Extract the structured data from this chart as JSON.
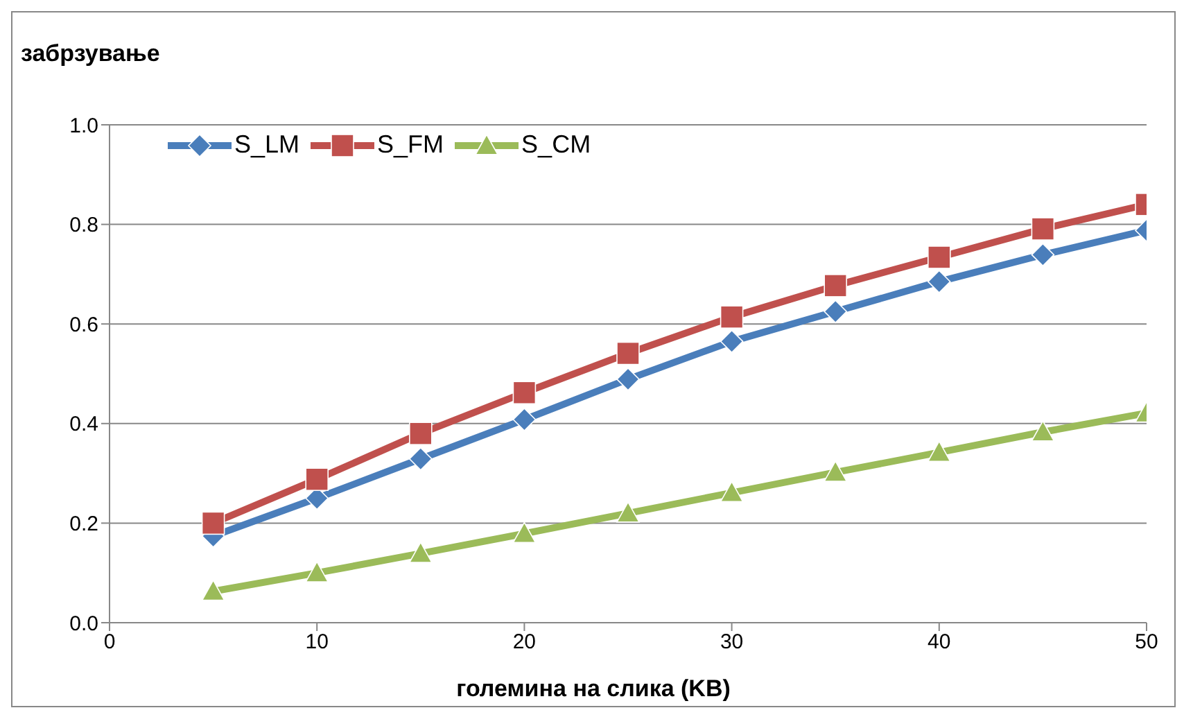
{
  "chart_data": {
    "type": "line",
    "ylabel": "забрзување",
    "xlabel": "големина на слика (KB)",
    "x": [
      5,
      10,
      15,
      20,
      25,
      30,
      35,
      40,
      45,
      50
    ],
    "series": [
      {
        "name": "S_LM",
        "color": "#4a7ebb",
        "marker": "diamond",
        "values": [
          0.174,
          0.25,
          0.329,
          0.408,
          0.489,
          0.565,
          0.625,
          0.685,
          0.739,
          0.788
        ]
      },
      {
        "name": "S_FM",
        "color": "#c0504d",
        "marker": "square",
        "values": [
          0.2,
          0.288,
          0.38,
          0.462,
          0.541,
          0.614,
          0.677,
          0.734,
          0.791,
          0.84
        ]
      },
      {
        "name": "S_CM",
        "color": "#9bbb59",
        "marker": "triangle",
        "values": [
          0.063,
          0.1,
          0.139,
          0.179,
          0.22,
          0.261,
          0.302,
          0.342,
          0.383,
          0.421
        ]
      }
    ],
    "xlim": [
      0,
      50
    ],
    "xticks": [
      0,
      10,
      20,
      30,
      40,
      50
    ],
    "ylim": [
      0,
      1
    ],
    "yticks": [
      {
        "value": 0,
        "label": "0.0"
      },
      {
        "value": 0.2,
        "label": "0.2"
      },
      {
        "value": 0.4,
        "label": "0.4"
      },
      {
        "value": 0.6,
        "label": "0.6"
      },
      {
        "value": 0.8,
        "label": "0.8"
      },
      {
        "value": 1,
        "label": "1.0"
      }
    ],
    "grid": "y",
    "legend": "top left"
  }
}
